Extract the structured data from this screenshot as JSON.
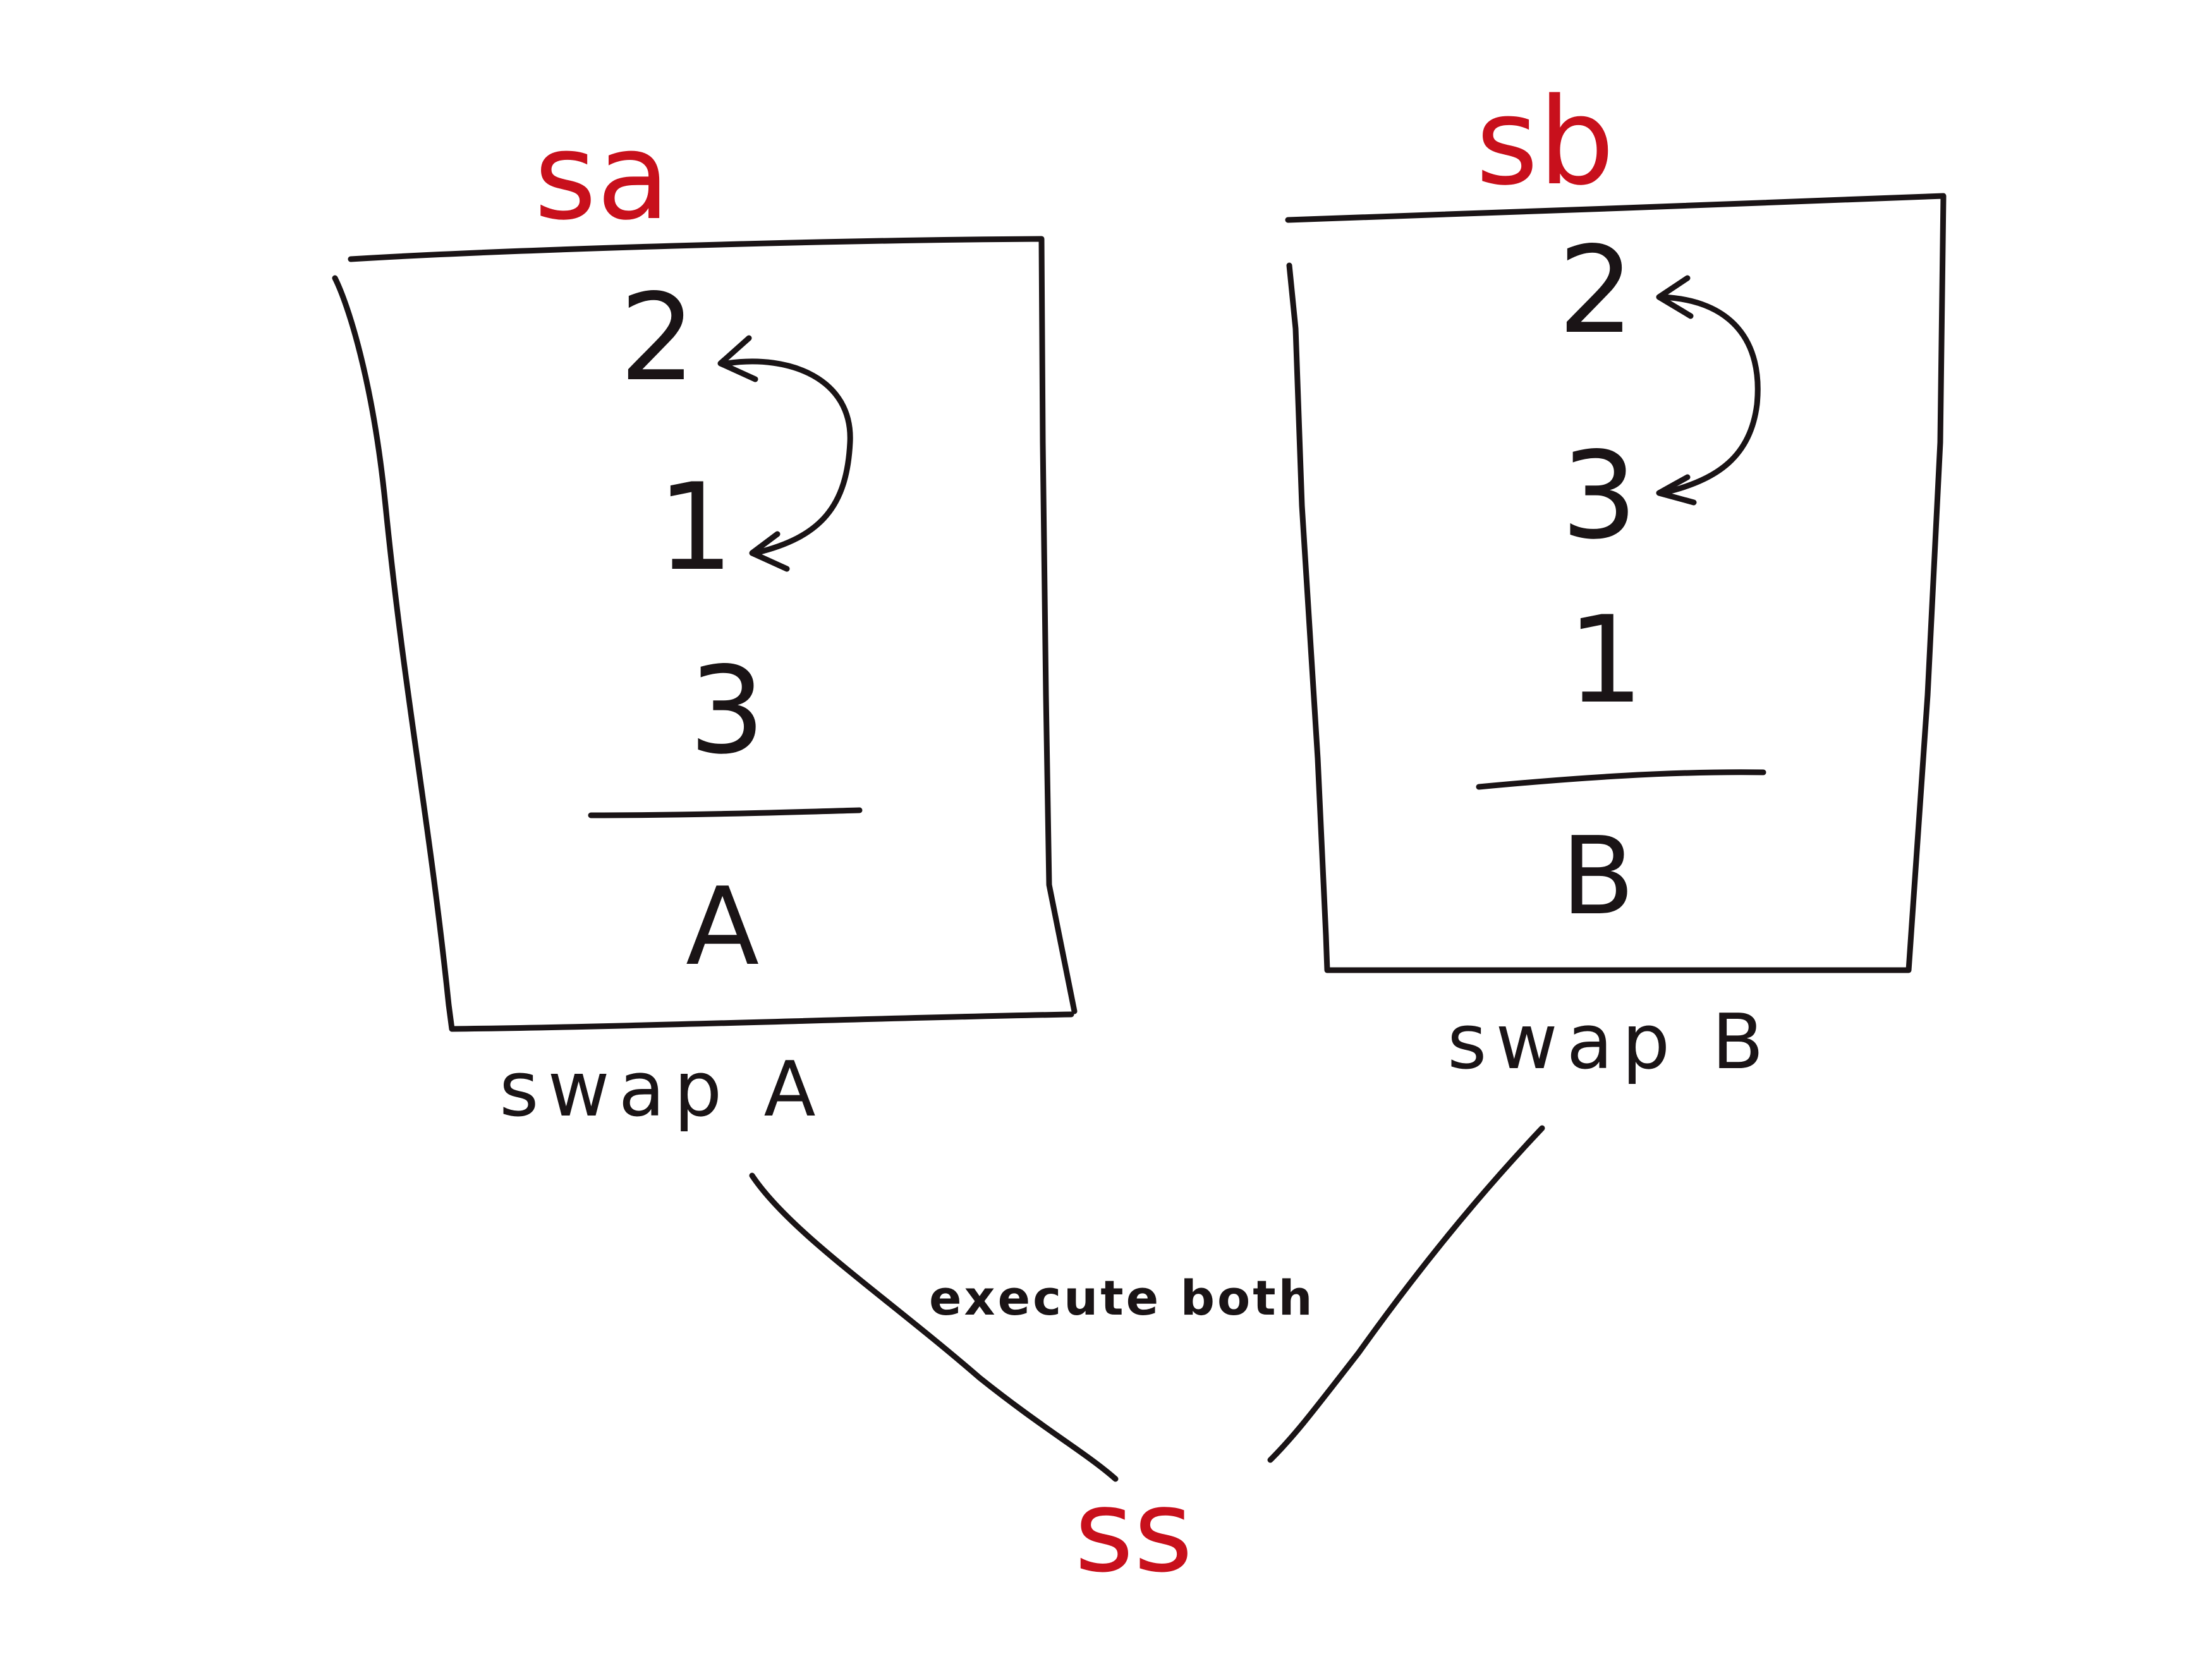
{
  "stack_a": {
    "operation_label": "sa",
    "top_value": "2",
    "second_value": "1",
    "third_value": "3",
    "stack_name": "A",
    "caption": "swap A"
  },
  "stack_b": {
    "operation_label": "sb",
    "top_value": "2",
    "second_value": "3",
    "third_value": "1",
    "stack_name": "B",
    "caption": "swap B"
  },
  "combined": {
    "operation_label": "ss",
    "note": "execute both"
  },
  "colors": {
    "ink": "#1a1416",
    "accent": "#c8101c",
    "background": "#ffffff"
  }
}
